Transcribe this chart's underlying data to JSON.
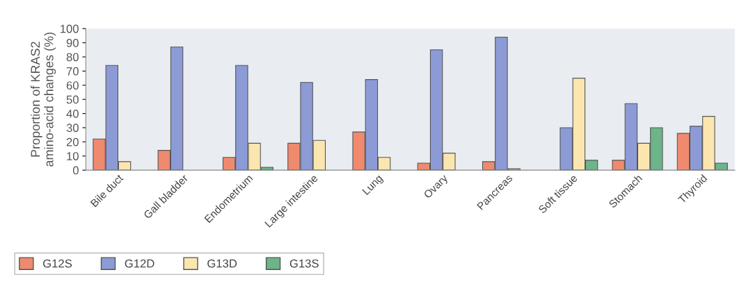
{
  "chart_data": {
    "type": "bar",
    "ylabel": "Proportion of KRAS2\namino-acid changes (%)",
    "categories": [
      "Bile duct",
      "Gall bladder",
      "Endometrium",
      "Large intestine",
      "Lung",
      "Ovary",
      "Pancreas",
      "Soft tissue",
      "Stomach",
      "Thyroid"
    ],
    "series": [
      {
        "name": "G12S",
        "color": "#ef8a6e",
        "values": [
          22,
          14,
          9,
          19,
          27,
          5,
          6,
          null,
          7,
          26
        ]
      },
      {
        "name": "G12D",
        "color": "#8c9bd6",
        "values": [
          74,
          87,
          74,
          62,
          64,
          85,
          94,
          30,
          47,
          31
        ]
      },
      {
        "name": "G13D",
        "color": "#fbe6b0",
        "values": [
          6,
          null,
          19,
          21,
          9,
          12,
          1,
          65,
          19,
          38
        ]
      },
      {
        "name": "G13S",
        "color": "#6cb48a",
        "values": [
          null,
          null,
          2,
          null,
          null,
          null,
          null,
          7,
          30,
          5
        ]
      }
    ],
    "ylim": [
      0,
      100
    ],
    "yticks": [
      0,
      10,
      20,
      30,
      40,
      50,
      60,
      70,
      80,
      90,
      100
    ],
    "grid": false,
    "legend": "bottom left"
  }
}
